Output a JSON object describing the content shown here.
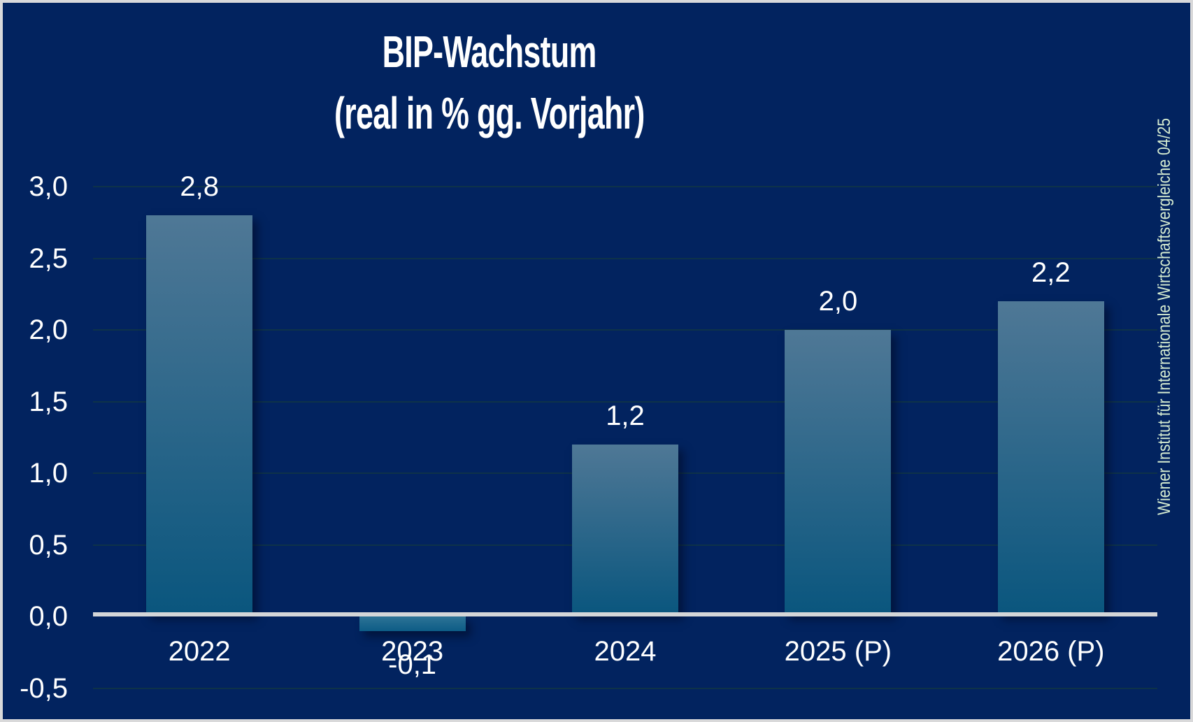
{
  "title": {
    "line1": "BIP-Wachstum",
    "line2": "(real in % gg. Vorjahr)"
  },
  "source_note": "Wiener Institut für Internationale Wirtschaftsvergleiche 04/25",
  "chart_data": {
    "type": "bar",
    "title": "BIP-Wachstum (real in % gg. Vorjahr)",
    "categories": [
      "2022",
      "2023",
      "2024",
      "2025 (P)",
      "2026 (P)"
    ],
    "values": [
      2.8,
      -0.1,
      1.2,
      2.0,
      2.2
    ],
    "value_labels": [
      "2,8",
      "-0,1",
      "1,2",
      "2,0",
      "2,2"
    ],
    "yticks": [
      3.0,
      2.5,
      2.0,
      1.5,
      1.0,
      0.5,
      0.0,
      -0.5
    ],
    "ytick_labels": [
      "3,0",
      "2,5",
      "2,0",
      "1,5",
      "1,0",
      "0,5",
      "0,0",
      "-0,5"
    ],
    "ylim": [
      -0.5,
      3.0
    ],
    "grid": true,
    "legend": false,
    "decimal_separator": ",",
    "colors": {
      "background": "#02235f",
      "frame_border": "#d9d9da",
      "bar_gradient_top": "#4f7896",
      "bar_gradient_bottom": "#0a567e",
      "negative_bar_top": "#2d7396",
      "negative_bar_bottom": "#0d5c86",
      "gridline": "#0e3249",
      "zero_axis_line": "#d4d6d8",
      "labels": "#ffffff",
      "source_text": "#d5ebd0"
    }
  }
}
